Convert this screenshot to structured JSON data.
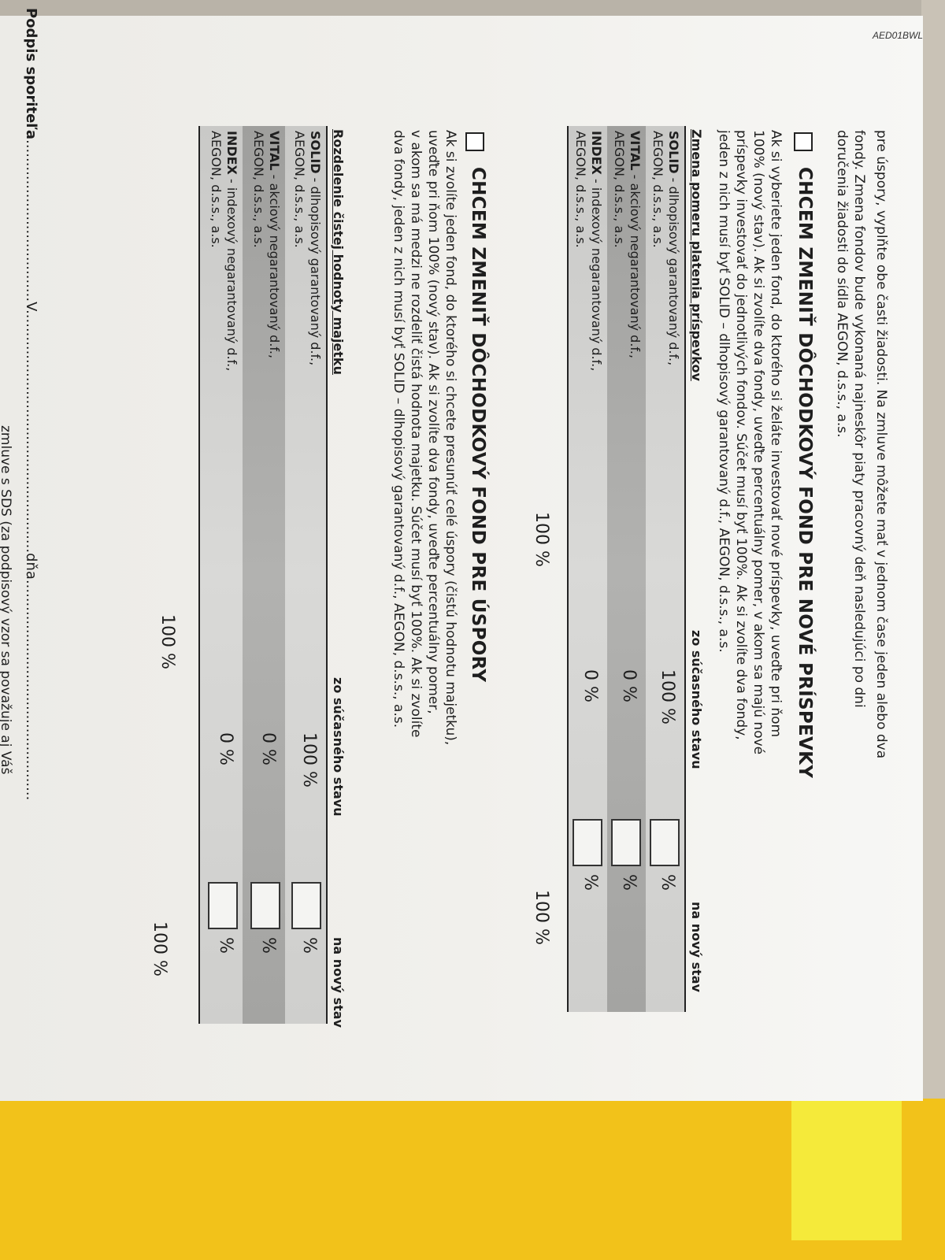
{
  "form_code": "AED01BWL",
  "intro_lines": [
    "pre úspory, vyplňte obe časti žiadosti. Na zmluve môžete mať v jednom čase jeden alebo dva",
    "fondy. Zmena fondov bude vykonaná najneskôr piaty pracovný deň nasledujúci po dni",
    "doručenia žiadosti do sídla AEGON, d.s.s., a.s."
  ],
  "section1": {
    "heading": "CHCEM ZMENIŤ DÔCHODKOVÝ FOND PRE NOVÉ PRÍSPEVKY",
    "checked": false,
    "body": [
      "Ak si vyberiete jeden fond, do ktorého si želáte investovať nové príspevky, uveďte pri ňom",
      "100% (nový stav). Ak si zvolíte dva fondy, uveďte percentuálny pomer, v akom sa majú nové",
      "príspevky investovať do jednotlivých fondov. Súčet musí byť 100%. Ak si zvolíte dva fondy,",
      "jeden z nich musí byť SOLID – dlhopisový garantovaný d.f., AEGON, d.s.s., a.s."
    ],
    "table": {
      "headers": [
        "Zmena pomeru platenia príspevkov",
        "zo súčasného stavu",
        "na nový stav"
      ],
      "rows": [
        {
          "name": "SOLID",
          "desc": " - dlhopisový garantovaný d.f.,",
          "company": "AEGON, d.s.s., a.s.",
          "current": "100 %",
          "new_value": "",
          "unit": "%"
        },
        {
          "name": "VITAL",
          "desc": " - akciový negarantovaný d.f.,",
          "company": "AEGON, d.s.s., a.s.",
          "current": "0 %",
          "new_value": "",
          "unit": "%"
        },
        {
          "name": "INDEX",
          "desc": " - indexový negarantovaný d.f.,",
          "company": "AEGON, d.s.s., a.s.",
          "current": "0 %",
          "new_value": "",
          "unit": "%"
        }
      ],
      "total_current": "100 %",
      "total_new": "100 %"
    }
  },
  "section2": {
    "heading": "CHCEM ZMENIŤ DÔCHODKOVÝ FOND PRE ÚSPORY",
    "checked": false,
    "body": [
      "Ak si zvolíte jeden fond, do ktorého si chcete presunúť celé úspory (čistú hodnotu majetku),",
      "uveďte pri ňom 100% (nový stav). Ak si zvolíte dva fondy, uveďte percentuálny pomer,",
      "v akom sa má medzi ne rozdeliť čistá hodnota majetku. Súčet musí byť 100%. Ak si zvolíte",
      "dva fondy, jeden z nich musí byť SOLID – dlhopisový garantovaný d.f., AEGON, d.s.s., a.s."
    ],
    "table": {
      "headers": [
        "Rozdelenie čistej hodnoty majetku",
        "zo súčasného stavu",
        "na nový stav"
      ],
      "rows": [
        {
          "name": "SOLID",
          "desc": " - dlhopisový garantovaný d.f.,",
          "company": "AEGON, d.s.s., a.s.",
          "current": "100 %",
          "new_value": "",
          "unit": "%"
        },
        {
          "name": "VITAL",
          "desc": " - akciový negarantovaný d.f.,",
          "company": "AEGON, d.s.s., a.s.",
          "current": "0 %",
          "new_value": "",
          "unit": "%"
        },
        {
          "name": "INDEX",
          "desc": " - indexový negarantovaný d.f.,",
          "company": "AEGON, d.s.s., a.s.",
          "current": "0 %",
          "new_value": "",
          "unit": "%"
        }
      ],
      "total_current": "100 %",
      "total_new": "100 %"
    }
  },
  "signature": {
    "label": "Podpis sporiteľa",
    "place_label": "V",
    "date_label": "dňa",
    "footnote": "zmluve s SDS (za podpisový vzor sa považuje aj Váš"
  },
  "colors": {
    "row_light": "#d2d2d0",
    "row_dark": "#a8a8a6",
    "sticky_note": "#f5ea3a",
    "folder": "#f2c21a"
  }
}
